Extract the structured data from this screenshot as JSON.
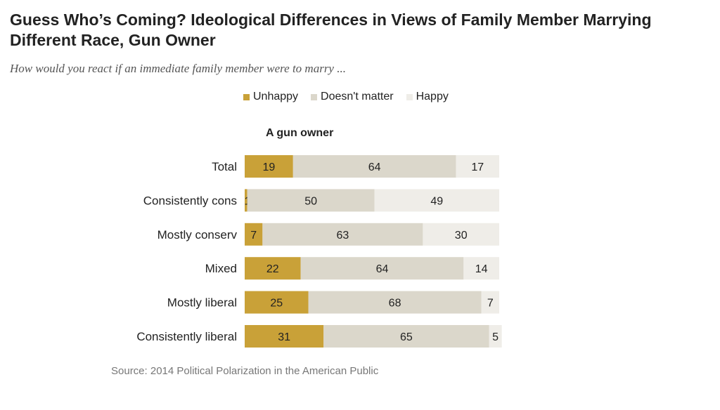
{
  "colors": {
    "unhappy": "#c9a138",
    "doesnt_matter": "#dbd7cb",
    "happy": "#efede8"
  },
  "chart_data": {
    "type": "bar",
    "orientation": "horizontal",
    "stacked": true,
    "title": "Guess Who’s Coming? Ideological Differences in Views of Family Member Marrying Different Race, Gun Owner",
    "subtitle": "How would you react if an immediate family member were to marry ...",
    "panel_title": "A gun owner",
    "legend_position": "top",
    "categories": [
      "Total",
      "Consistently cons",
      "Mostly conserv",
      "Mixed",
      "Mostly liberal",
      "Consistently liberal"
    ],
    "series": [
      {
        "name": "Unhappy",
        "values": [
          19,
          1,
          7,
          22,
          25,
          31
        ]
      },
      {
        "name": "Doesn't matter",
        "values": [
          64,
          50,
          63,
          64,
          68,
          65
        ]
      },
      {
        "name": "Happy",
        "values": [
          17,
          49,
          30,
          14,
          7,
          5
        ]
      }
    ],
    "xlim": [
      0,
      100
    ],
    "source": "Source: 2014 Political Polarization in the American Public"
  }
}
